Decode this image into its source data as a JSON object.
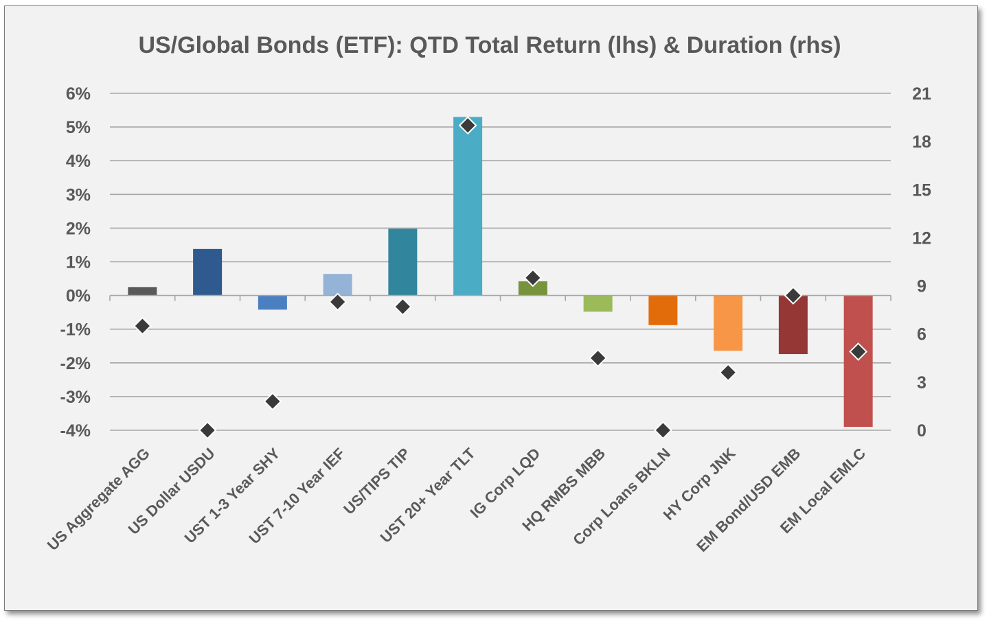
{
  "chart_data": {
    "type": "bar",
    "title": "US/Global Bonds (ETF): QTD Total Return (lhs) & Duration (rhs)",
    "categories": [
      "US Aggregate AGG",
      "US Dollar USDU",
      "UST 1-3 Year SHY",
      "UST 7-10 Year IEF",
      "US/TIPS TIP",
      "UST 20+ Year TLT",
      "IG Corp LQD",
      "HQ RMBS MBB",
      "Corp Loans BKLN",
      "HY Corp JNK",
      "EM Bond/USD EMB",
      "EM Local EMLC"
    ],
    "series": [
      {
        "kind": "bar",
        "axis": "left",
        "values": [
          0.25,
          1.38,
          -0.42,
          0.64,
          1.98,
          5.3,
          0.42,
          -0.48,
          -0.88,
          -1.64,
          -1.74,
          -3.9
        ],
        "colors": [
          "#595959",
          "#2f5a8f",
          "#4a7fc1",
          "#95b3d7",
          "#31859c",
          "#4bacc6",
          "#77933c",
          "#9bbb59",
          "#e36c0a",
          "#f79646",
          "#953735",
          "#c0504d"
        ]
      },
      {
        "kind": "scatter",
        "axis": "right",
        "values": [
          6.5,
          0.0,
          1.8,
          8.0,
          7.7,
          19.0,
          9.5,
          4.5,
          0.0,
          3.6,
          8.4,
          4.9
        ],
        "marker": "diamond",
        "color": "#3a3a3a"
      }
    ],
    "y_left": {
      "ticks": [
        "6%",
        "5%",
        "4%",
        "3%",
        "2%",
        "1%",
        "0%",
        "-1%",
        "-2%",
        "-3%",
        "-4%"
      ],
      "ylim": [
        -4,
        6
      ]
    },
    "y_right": {
      "ticks": [
        "21",
        "18",
        "15",
        "12",
        "9",
        "6",
        "3",
        "0"
      ],
      "ylim": [
        0,
        21
      ]
    },
    "grid": true,
    "legend": "none"
  }
}
